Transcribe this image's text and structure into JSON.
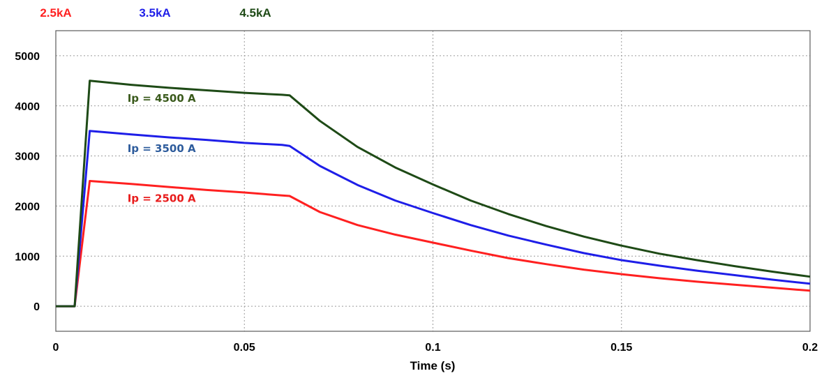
{
  "chart_data": {
    "type": "line",
    "title": "",
    "xlabel": "Time (s)",
    "ylabel": "",
    "xlim": [
      0,
      0.2
    ],
    "ylim": [
      -500,
      5500
    ],
    "xticks": [
      0,
      0.05,
      0.1,
      0.15,
      0.2
    ],
    "xtick_labels": [
      "0",
      "0.05",
      "0.1",
      "0.15",
      "0.2"
    ],
    "yticks": [
      0,
      1000,
      2000,
      3000,
      4000,
      5000
    ],
    "ytick_labels": [
      "0",
      "1000",
      "2000",
      "3000",
      "4000",
      "5000"
    ],
    "grid": true,
    "legend_position": "top-left",
    "series": [
      {
        "name": "2.5kA",
        "color": "#ff2020",
        "annotation": "Ip = 2500 A",
        "annotation_color": "#e81c1c",
        "annotation_at": [
          0.019,
          2080
        ],
        "x": [
          0,
          0.005,
          0.009,
          0.02,
          0.03,
          0.04,
          0.05,
          0.06,
          0.062,
          0.07,
          0.08,
          0.09,
          0.1,
          0.11,
          0.12,
          0.13,
          0.14,
          0.15,
          0.16,
          0.17,
          0.18,
          0.19,
          0.2
        ],
        "y": [
          0,
          0,
          2500,
          2440,
          2380,
          2320,
          2270,
          2210,
          2200,
          1880,
          1620,
          1430,
          1270,
          1110,
          960,
          840,
          730,
          640,
          560,
          490,
          430,
          370,
          310
        ]
      },
      {
        "name": "3.5kA",
        "color": "#1e1ee8",
        "annotation": "Ip = 3500 A",
        "annotation_color": "#2e5c9c",
        "annotation_at": [
          0.019,
          3080
        ],
        "x": [
          0,
          0.005,
          0.009,
          0.02,
          0.03,
          0.04,
          0.05,
          0.06,
          0.062,
          0.07,
          0.08,
          0.09,
          0.1,
          0.11,
          0.12,
          0.13,
          0.14,
          0.15,
          0.16,
          0.17,
          0.18,
          0.19,
          0.2
        ],
        "y": [
          0,
          0,
          3500,
          3430,
          3370,
          3320,
          3260,
          3220,
          3200,
          2800,
          2420,
          2110,
          1860,
          1620,
          1410,
          1230,
          1060,
          920,
          810,
          710,
          620,
          530,
          450
        ]
      },
      {
        "name": "4.5kA",
        "color": "#1e4a16",
        "annotation": "Ip = 4500 A",
        "annotation_color": "#3a5a1c",
        "annotation_at": [
          0.019,
          4080
        ],
        "x": [
          0,
          0.005,
          0.009,
          0.02,
          0.03,
          0.04,
          0.05,
          0.06,
          0.062,
          0.07,
          0.08,
          0.09,
          0.1,
          0.11,
          0.12,
          0.13,
          0.14,
          0.15,
          0.16,
          0.17,
          0.18,
          0.19,
          0.2
        ],
        "y": [
          0,
          0,
          4500,
          4420,
          4360,
          4310,
          4260,
          4220,
          4210,
          3700,
          3180,
          2770,
          2430,
          2110,
          1840,
          1600,
          1390,
          1210,
          1050,
          920,
          800,
          690,
          590
        ]
      }
    ]
  }
}
